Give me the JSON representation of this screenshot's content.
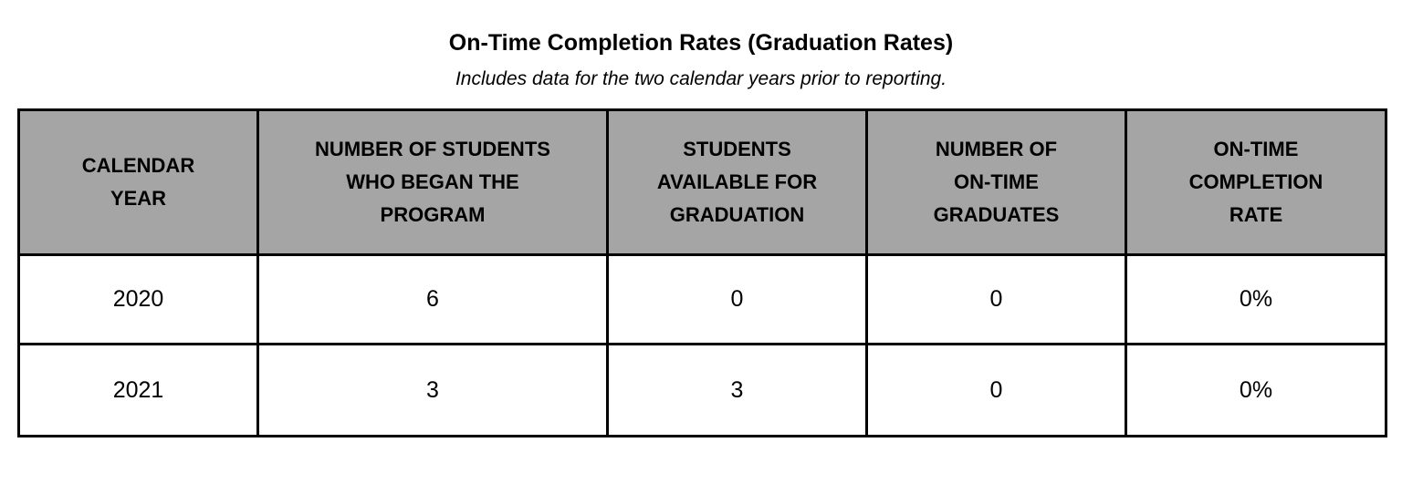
{
  "title": "On-Time Completion Rates (Graduation Rates)",
  "subtitle": "Includes data for the two calendar years prior to reporting.",
  "header_color": "#a5a5a5",
  "table": {
    "headers": [
      [
        "CALENDAR",
        "YEAR"
      ],
      [
        "NUMBER OF STUDENTS",
        "WHO BEGAN THE",
        "PROGRAM"
      ],
      [
        "STUDENTS",
        "AVAILABLE FOR",
        "GRADUATION"
      ],
      [
        "NUMBER OF",
        "ON-TIME",
        "GRADUATES"
      ],
      [
        "ON-TIME",
        "COMPLETION",
        "RATE"
      ]
    ],
    "rows": [
      [
        "2020",
        "6",
        "0",
        "0",
        "0%"
      ],
      [
        "2021",
        "3",
        "3",
        "0",
        "0%"
      ]
    ]
  }
}
